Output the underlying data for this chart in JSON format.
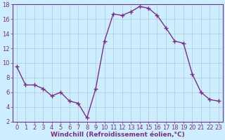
{
  "x": [
    0,
    1,
    2,
    3,
    4,
    5,
    6,
    7,
    8,
    9,
    10,
    11,
    12,
    13,
    14,
    15,
    16,
    17,
    18,
    19,
    20,
    21,
    22,
    23
  ],
  "y": [
    9.5,
    7.0,
    7.0,
    6.5,
    5.5,
    6.0,
    4.8,
    4.5,
    2.5,
    6.5,
    13.0,
    16.7,
    16.5,
    17.0,
    17.7,
    17.5,
    16.5,
    14.8,
    13.0,
    12.7,
    8.5,
    6.0,
    5.0,
    4.8
  ],
  "line_color": "#7b2d8b",
  "marker": "+",
  "markersize": 4,
  "linewidth": 1.0,
  "background_color": "#cceeff",
  "grid_color": "#b0c8d8",
  "xlabel": "Windchill (Refroidissement éolien,°C)",
  "xlabel_color": "#7b2d8b",
  "xlabel_fontsize": 6.5,
  "tick_color": "#7b2d8b",
  "tick_fontsize": 6.0,
  "xlim": [
    -0.5,
    23.5
  ],
  "ylim": [
    2,
    18
  ],
  "yticks": [
    2,
    4,
    6,
    8,
    10,
    12,
    14,
    16,
    18
  ],
  "xticks": [
    0,
    1,
    2,
    3,
    4,
    5,
    6,
    7,
    8,
    9,
    10,
    11,
    12,
    13,
    14,
    15,
    16,
    17,
    18,
    19,
    20,
    21,
    22,
    23
  ],
  "spine_color": "#7b2d8b"
}
